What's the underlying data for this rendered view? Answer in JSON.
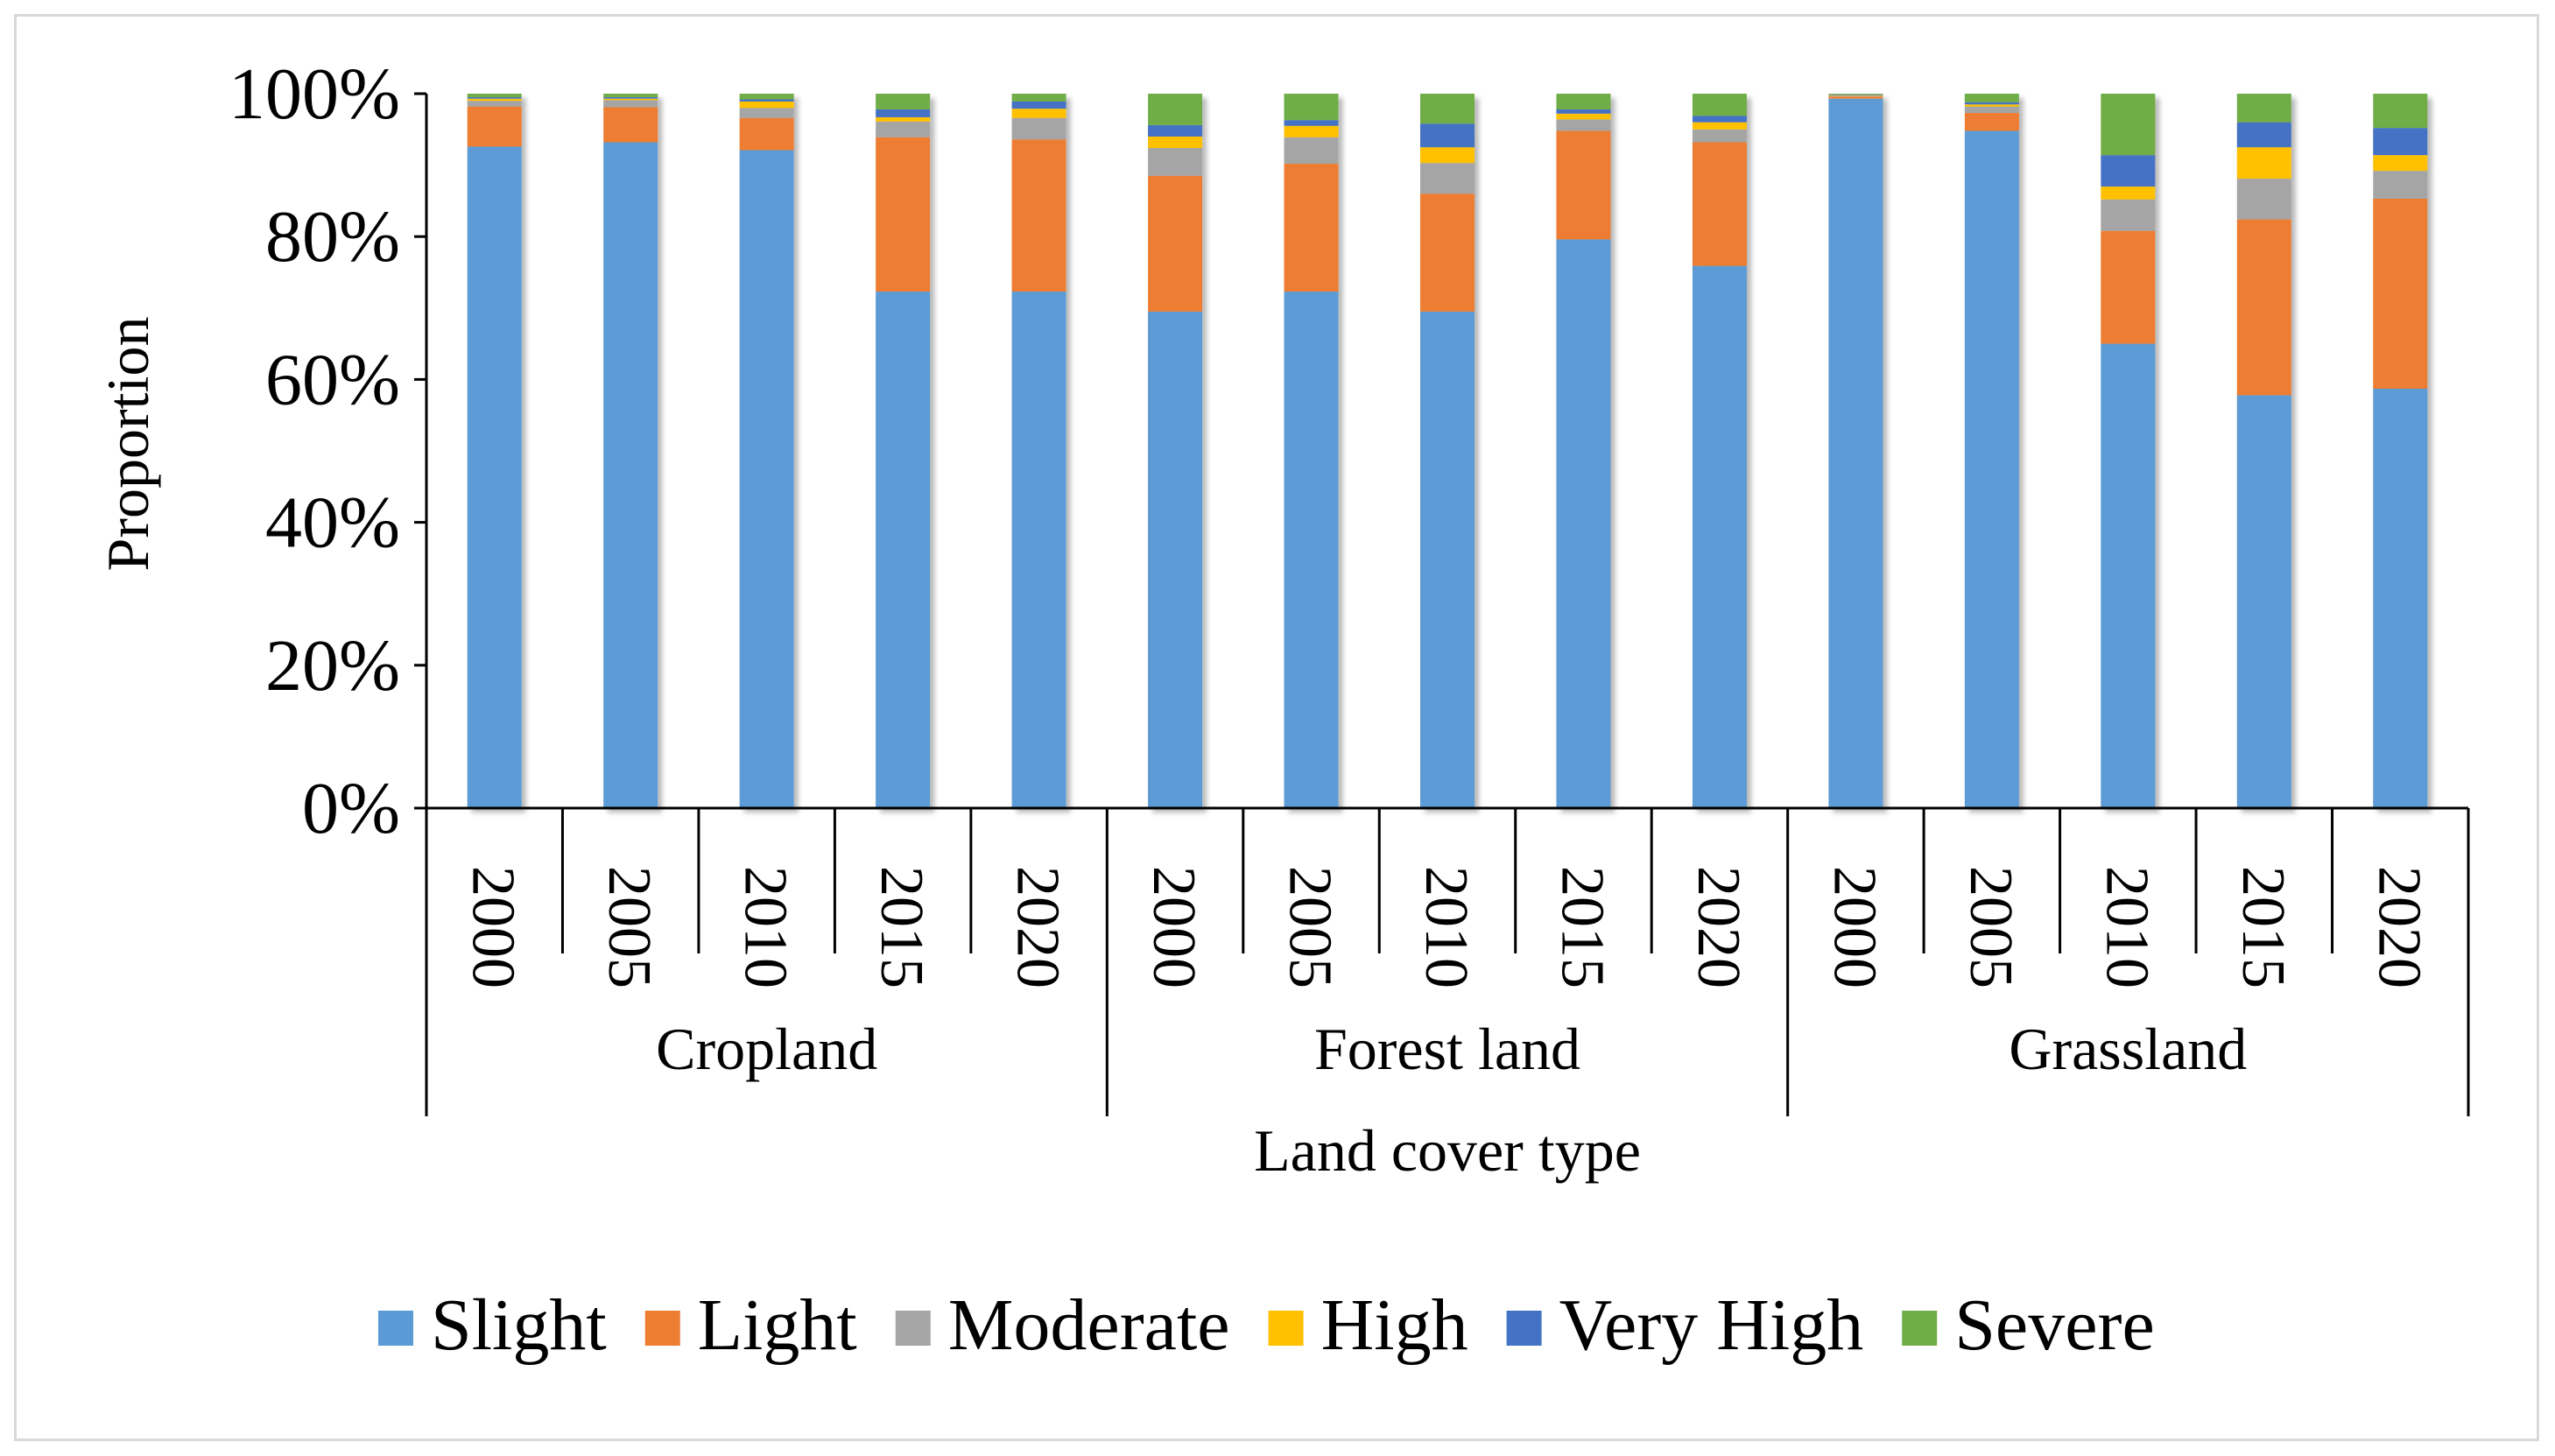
{
  "chart_data": {
    "type": "bar",
    "stacked": true,
    "title": "",
    "xlabel": "Land cover type",
    "ylabel": "Proportion",
    "ylim": [
      0,
      100
    ],
    "y_ticks": [
      "0%",
      "20%",
      "40%",
      "60%",
      "80%",
      "100%"
    ],
    "groups": [
      "Cropland",
      "Forest land",
      "Grassland"
    ],
    "years": [
      "2000",
      "2005",
      "2010",
      "2015",
      "2020"
    ],
    "categories": [
      "Cropland 2000",
      "Cropland 2005",
      "Cropland 2010",
      "Cropland 2015",
      "Cropland 2020",
      "Forest land 2000",
      "Forest land 2005",
      "Forest land 2010",
      "Forest land 2015",
      "Forest land 2020",
      "Grassland 2000",
      "Grassland 2005",
      "Grassland 2010",
      "Grassland 2015",
      "Grassland 2020"
    ],
    "series": [
      {
        "name": "Slight",
        "color": "#5B9BD5",
        "values": [
          92.6,
          93.2,
          92.1,
          72.3,
          72.3,
          69.5,
          72.3,
          69.5,
          79.6,
          75.9,
          99.3,
          94.8,
          65.0,
          57.8,
          58.7
        ]
      },
      {
        "name": "Light",
        "color": "#ED7D31",
        "values": [
          5.6,
          4.9,
          4.5,
          21.6,
          21.3,
          19.0,
          17.9,
          16.5,
          15.2,
          17.3,
          0.3,
          2.5,
          15.8,
          24.6,
          26.6
        ]
      },
      {
        "name": "Moderate",
        "color": "#A5A5A5",
        "values": [
          0.8,
          1.0,
          1.4,
          2.2,
          3.0,
          3.9,
          3.7,
          4.3,
          1.6,
          1.8,
          0.1,
          0.9,
          4.4,
          5.7,
          3.9
        ]
      },
      {
        "name": "High",
        "color": "#FFC000",
        "values": [
          0.3,
          0.2,
          0.9,
          0.6,
          1.3,
          1.6,
          1.6,
          2.2,
          0.8,
          1.0,
          0.1,
          0.3,
          1.8,
          4.4,
          2.2
        ]
      },
      {
        "name": "Very High",
        "color": "#4472C4",
        "values": [
          0.2,
          0.2,
          0.3,
          1.1,
          1.0,
          1.6,
          0.8,
          3.3,
          0.6,
          0.9,
          0.1,
          0.3,
          4.4,
          3.5,
          3.8
        ]
      },
      {
        "name": "Severe",
        "color": "#70AD47",
        "values": [
          0.5,
          0.5,
          0.8,
          2.2,
          1.1,
          4.4,
          3.7,
          4.2,
          2.2,
          3.1,
          0.1,
          1.2,
          8.6,
          4.0,
          4.8
        ]
      }
    ],
    "legend_position": "bottom"
  }
}
